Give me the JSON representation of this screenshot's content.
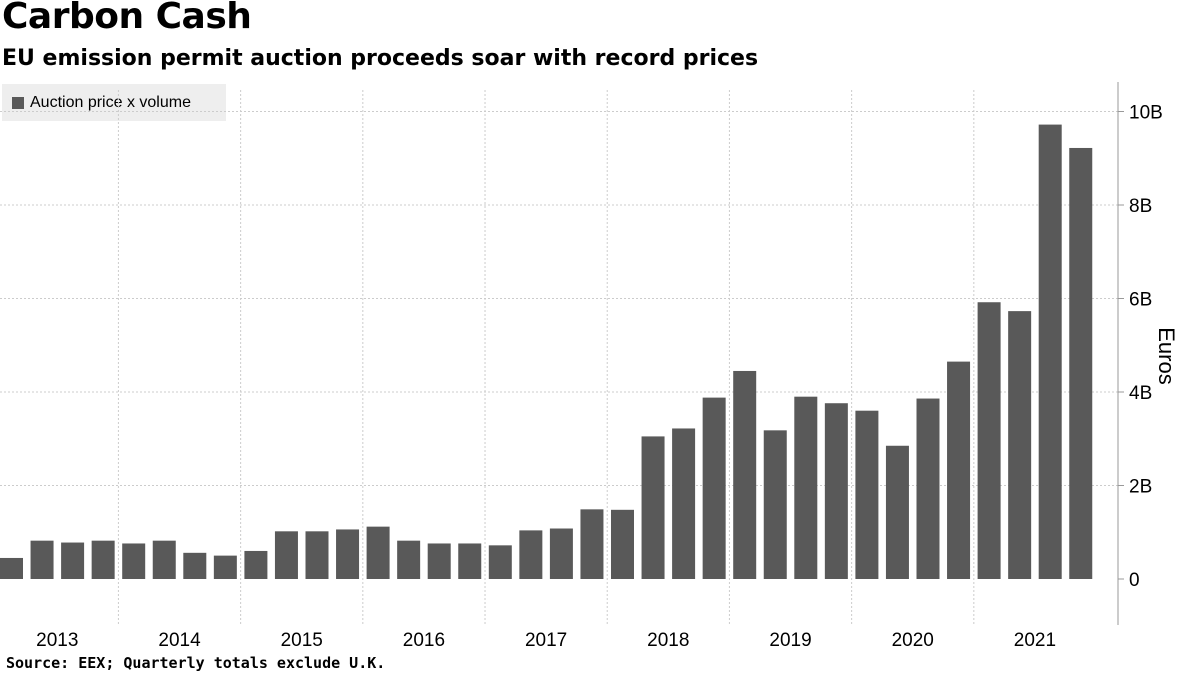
{
  "header": {
    "title": "Carbon Cash",
    "subtitle": "EU emission permit auction proceeds soar with record prices"
  },
  "footer": {
    "source": "Source: EEX; Quarterly totals exclude U.K."
  },
  "colors": {
    "bar": "#595959",
    "grid": "#cccccc",
    "axis": "#999999",
    "legend_bg": "#eeeeee"
  },
  "chart_data": {
    "type": "bar",
    "title": "Carbon Cash",
    "subtitle": "EU emission permit auction proceeds soar with record prices",
    "xlabel": "",
    "ylabel": "Euros",
    "ylim": [
      -0.9,
      10.6
    ],
    "grid": true,
    "legend_position": "top-left",
    "y_ticks": [
      {
        "value": 0,
        "label": "0"
      },
      {
        "value": 2,
        "label": "2B"
      },
      {
        "value": 4,
        "label": "4B"
      },
      {
        "value": 6,
        "label": "6B"
      },
      {
        "value": 8,
        "label": "8B"
      },
      {
        "value": 10,
        "label": "10B"
      }
    ],
    "years": [
      "2013",
      "2014",
      "2015",
      "2016",
      "2017",
      "2018",
      "2019",
      "2020",
      "2021"
    ],
    "categories": [
      "2013 Q1",
      "2013 Q2",
      "2013 Q3",
      "2013 Q4",
      "2014 Q1",
      "2014 Q2",
      "2014 Q3",
      "2014 Q4",
      "2015 Q1",
      "2015 Q2",
      "2015 Q3",
      "2015 Q4",
      "2016 Q1",
      "2016 Q2",
      "2016 Q3",
      "2016 Q4",
      "2017 Q1",
      "2017 Q2",
      "2017 Q3",
      "2017 Q4",
      "2018 Q1",
      "2018 Q2",
      "2018 Q3",
      "2018 Q4",
      "2019 Q1",
      "2019 Q2",
      "2019 Q3",
      "2019 Q4",
      "2020 Q1",
      "2020 Q2",
      "2020 Q3",
      "2020 Q4",
      "2021 Q1",
      "2021 Q2",
      "2021 Q3",
      "2021 Q4"
    ],
    "series": [
      {
        "name": "Auction price x volume",
        "values": [
          0.45,
          0.82,
          0.78,
          0.82,
          0.76,
          0.82,
          0.56,
          0.5,
          0.6,
          1.02,
          1.02,
          1.06,
          1.12,
          0.82,
          0.76,
          0.76,
          0.72,
          1.04,
          1.08,
          1.49,
          1.48,
          3.05,
          3.22,
          3.88,
          4.45,
          3.18,
          3.9,
          3.76,
          3.6,
          2.85,
          3.86,
          4.65,
          5.92,
          5.73,
          9.72,
          9.22
        ]
      }
    ]
  }
}
